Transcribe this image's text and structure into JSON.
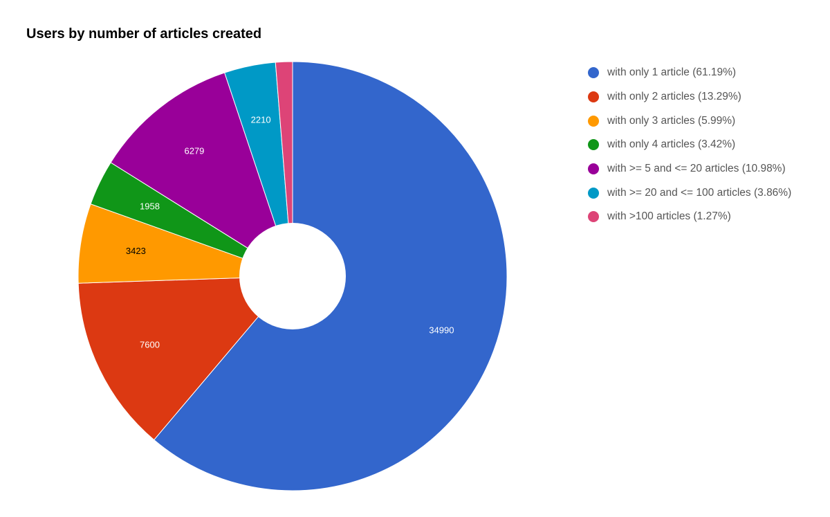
{
  "chart_data": {
    "type": "pie",
    "title": "Users by number of articles created",
    "legend_position": "right",
    "donut_hole": true,
    "categories": [
      "with only 1 article (61.19%)",
      "with only 2 articles (13.29%)",
      "with only 3 articles (5.99%)",
      "with only 4 articles (3.42%)",
      "with >= 5 and <= 20 articles (10.98%)",
      "with >= 20 and <= 100 articles (3.86%)",
      "with >100 articles (1.27%)"
    ],
    "values": [
      34990,
      7600,
      3423,
      1958,
      6279,
      2210,
      728
    ],
    "data_labels": [
      "34990",
      "7600",
      "3423",
      "1958",
      "6279",
      "2210",
      ""
    ],
    "colors": [
      "#3366cc",
      "#dc3912",
      "#ff9900",
      "#109618",
      "#990099",
      "#0099c6",
      "#dd4477"
    ],
    "label_colors": [
      "#ffffff",
      "#ffffff",
      "#000000",
      "#ffffff",
      "#ffffff",
      "#ffffff",
      "#ffffff"
    ]
  }
}
